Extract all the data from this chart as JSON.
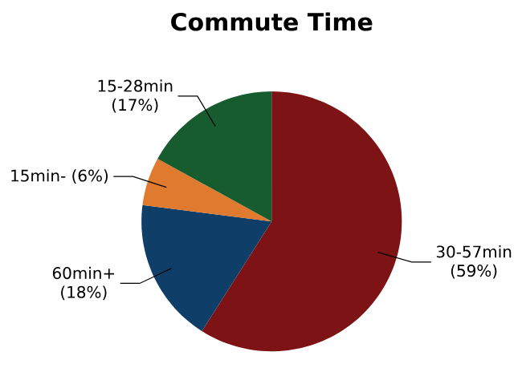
{
  "chart_data": {
    "type": "pie",
    "title": "Commute Time",
    "categories": [
      "30-57min",
      "60min+",
      "15min-",
      "15-28min"
    ],
    "values": [
      59,
      18,
      6,
      17
    ],
    "value_labels": [
      "(59%)",
      "(18%)",
      "(6%)",
      "(17%)"
    ],
    "colors": [
      "#7d1315",
      "#0f3e69",
      "#df7a2e",
      "#165c2f"
    ]
  }
}
